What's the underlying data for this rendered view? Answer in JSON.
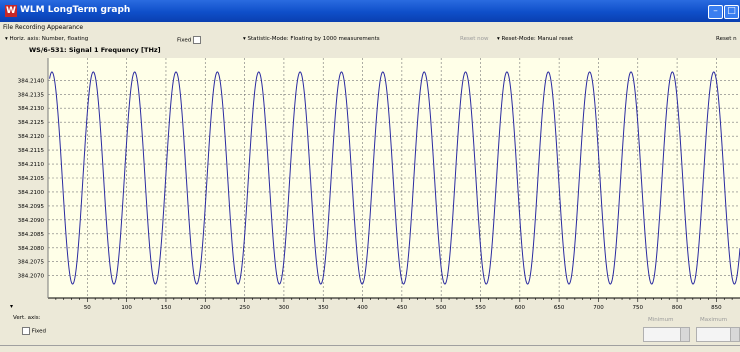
{
  "window": {
    "title": "WLM LongTerm graph"
  },
  "menu": [
    {
      "label": "File"
    },
    {
      "label": "Recording"
    },
    {
      "label": "Appearance"
    }
  ],
  "options": {
    "horiz_axis": "Horiz. axis: Number, floating",
    "fixed": "Fixed",
    "statistic_mode": "Statistic-Mode: Floating by 1000 measurements",
    "reset_now": "Reset now",
    "reset_mode": "Reset-Mode: Manual reset",
    "reset_right": "Reset n"
  },
  "chart_title": "WS/6-531: Signal 1  Frequency  [THz]",
  "bottom": {
    "vert_axis": "Vert. axis:",
    "fixed": "Fixed",
    "minimum": "Minimum",
    "maximum": "Maximum"
  },
  "colors": {
    "plot_bg": "#ffffe8",
    "line": "#2b2ba0",
    "title_bar": "#0f4fc9"
  },
  "chart_data": {
    "type": "line",
    "title": "WS/6-531: Signal 1  Frequency  [THz]",
    "xlabel": "",
    "ylabel": "",
    "xlim": [
      0,
      880
    ],
    "ylim": [
      384.2062,
      384.2148
    ],
    "yticks": [
      384.207,
      384.2075,
      384.208,
      384.2085,
      384.209,
      384.2095,
      384.21,
      384.2105,
      384.211,
      384.2115,
      384.212,
      384.2125,
      384.213,
      384.2135,
      384.214
    ],
    "xticks": [
      50,
      100,
      150,
      200,
      250,
      300,
      350,
      400,
      450,
      500,
      550,
      600,
      650,
      700,
      750,
      800,
      850
    ],
    "grid": true,
    "series": [
      {
        "period": 52.6,
        "max": 384.2143,
        "min": 384.2067,
        "first_peak_x": 5
      }
    ]
  }
}
